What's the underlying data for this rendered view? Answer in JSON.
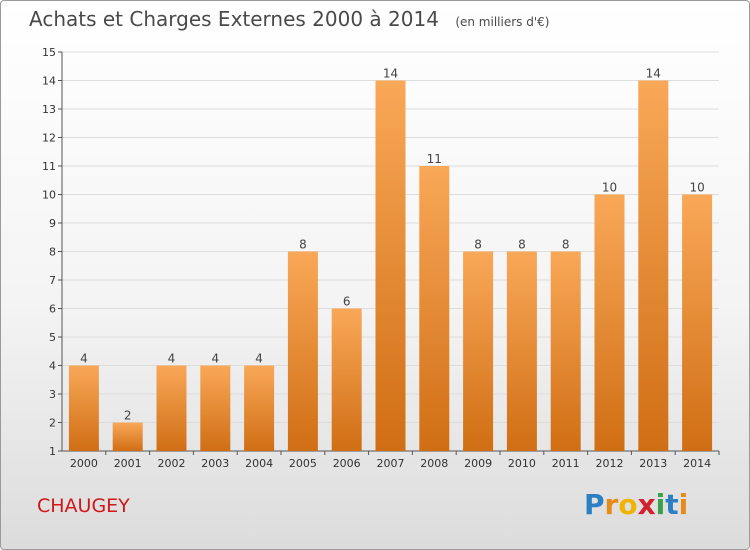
{
  "header": {
    "title": "Achats et Charges Externes 2000 à 2014",
    "subtitle": "(en milliers d'€)"
  },
  "footer": {
    "commune": "CHAUGEY",
    "logo": [
      "P",
      "r",
      "o",
      "x",
      "i",
      "t",
      "i"
    ]
  },
  "colors": {
    "bar_light": "#f9a858",
    "bar_dark": "#d06e14",
    "grid": "#dddddd",
    "axis": "#555555"
  },
  "chart_data": {
    "type": "bar",
    "title": "Achats et Charges Externes 2000 à 2014",
    "subtitle": "(en milliers d'€)",
    "categories": [
      "2000",
      "2001",
      "2002",
      "2003",
      "2004",
      "2005",
      "2006",
      "2007",
      "2008",
      "2009",
      "2010",
      "2011",
      "2012",
      "2013",
      "2014"
    ],
    "values": [
      4,
      2,
      4,
      4,
      4,
      8,
      6,
      14,
      11,
      8,
      8,
      8,
      10,
      14,
      10
    ],
    "ylim": [
      1,
      15
    ],
    "yticks": [
      1,
      2,
      3,
      4,
      5,
      6,
      7,
      8,
      9,
      10,
      11,
      12,
      13,
      14,
      15
    ],
    "xlabel": "",
    "ylabel": "",
    "grid": true,
    "legend": "none"
  }
}
